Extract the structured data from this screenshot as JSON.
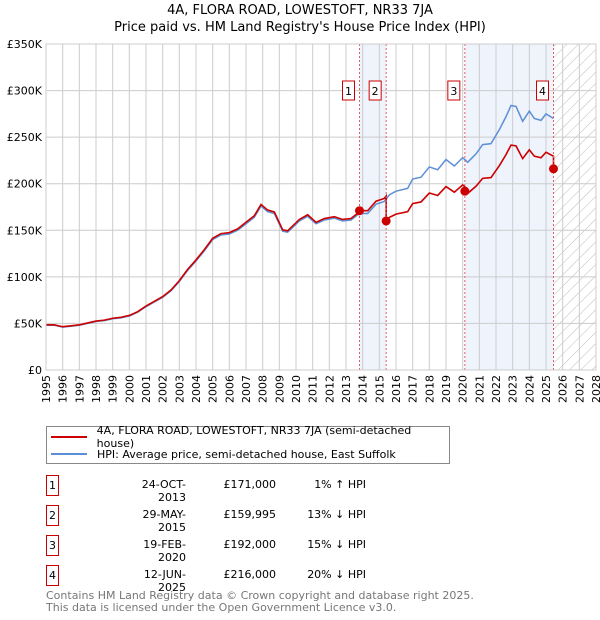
{
  "chart_data": {
    "type": "line",
    "title": "4A, FLORA ROAD, LOWESTOFT, NR33 7JA",
    "subtitle": "Price paid vs. HM Land Registry's House Price Index (HPI)",
    "xlim": [
      1995,
      2028
    ],
    "ylim": [
      0,
      350000
    ],
    "grid": true,
    "x_ticks": [
      "1995",
      "1996",
      "1997",
      "1998",
      "1999",
      "2000",
      "2001",
      "2002",
      "2003",
      "2004",
      "2005",
      "2006",
      "2007",
      "2008",
      "2009",
      "2010",
      "2011",
      "2012",
      "2013",
      "2014",
      "2015",
      "2016",
      "2017",
      "2018",
      "2019",
      "2020",
      "2021",
      "2022",
      "2023",
      "2024",
      "2025",
      "2026",
      "2027",
      "2028"
    ],
    "y_ticks": [
      {
        "v": 0,
        "label": "£0"
      },
      {
        "v": 50000,
        "label": "£50K"
      },
      {
        "v": 100000,
        "label": "£100K"
      },
      {
        "v": 150000,
        "label": "£150K"
      },
      {
        "v": 200000,
        "label": "£200K"
      },
      {
        "v": 250000,
        "label": "£250K"
      },
      {
        "v": 300000,
        "label": "£300K"
      },
      {
        "v": 350000,
        "label": "£350K"
      }
    ],
    "series": [
      {
        "name": "4A, FLORA ROAD, LOWESTOFT, NR33 7JA (semi-detached house)",
        "color": "#cc0000",
        "derived_from_hpi": true
      },
      {
        "name": "HPI: Average price, semi-detached house, East Suffolk",
        "color": "#5b8fd6",
        "x": [
          1995,
          1995.5,
          1996,
          1996.5,
          1997,
          1997.5,
          1998,
          1998.5,
          1999,
          1999.5,
          2000,
          2000.5,
          2001,
          2001.5,
          2002,
          2002.5,
          2003,
          2003.5,
          2004,
          2004.5,
          2005,
          2005.5,
          2006,
          2006.5,
          2007,
          2007.5,
          2007.9,
          2008.3,
          2008.7,
          2009.2,
          2009.5,
          2010.2,
          2010.7,
          2011.2,
          2011.7,
          2012.3,
          2012.8,
          2013.3,
          2013.8,
          2014.3,
          2014.8,
          2015.3,
          2015.6,
          2016,
          2016.7,
          2017,
          2017.5,
          2018,
          2018.5,
          2019,
          2019.5,
          2020,
          2020.3,
          2020.8,
          2021.2,
          2021.7,
          2022.2,
          2022.6,
          2022.9,
          2023.2,
          2023.6,
          2024,
          2024.3,
          2024.7,
          2025,
          2025.45
        ],
        "y": [
          48000,
          48000,
          46000,
          47000,
          48000,
          50000,
          52000,
          53000,
          55000,
          56000,
          58000,
          62000,
          68000,
          73000,
          78000,
          85000,
          95000,
          107000,
          117000,
          128000,
          140000,
          145000,
          146000,
          150000,
          157000,
          164000,
          176000,
          170000,
          168000,
          149000,
          148000,
          160000,
          165000,
          157000,
          161000,
          163000,
          160000,
          161000,
          168000,
          168000,
          178000,
          181000,
          188000,
          192000,
          195000,
          205000,
          207000,
          218000,
          215000,
          226000,
          219000,
          228000,
          223000,
          232000,
          242000,
          243000,
          258000,
          272000,
          284000,
          283000,
          267000,
          278000,
          270000,
          268000,
          275000,
          270000
        ]
      }
    ],
    "sales": [
      {
        "id": "1",
        "x": 2013.81,
        "date": "24-OCT-2013",
        "price": 171000,
        "price_label": "£171,000",
        "hpi_diff": "1% ↑ HPI"
      },
      {
        "id": "2",
        "x": 2015.41,
        "date": "29-MAY-2015",
        "price": 159995,
        "price_label": "£159,995",
        "hpi_diff": "13% ↓ HPI"
      },
      {
        "id": "3",
        "x": 2020.13,
        "date": "19-FEB-2020",
        "price": 192000,
        "price_label": "£192,000",
        "hpi_diff": "15% ↓ HPI"
      },
      {
        "id": "4",
        "x": 2025.45,
        "date": "12-JUN-2025",
        "price": 216000,
        "price_label": "£216,000",
        "hpi_diff": "20% ↓ HPI"
      }
    ],
    "shaded_ranges": [
      [
        2013.81,
        2015.41
      ],
      [
        2020.13,
        2025.45
      ]
    ],
    "hatched_from": 2025.45
  },
  "legend": {
    "property": "4A, FLORA ROAD, LOWESTOFT, NR33 7JA (semi-detached house)",
    "hpi": "HPI: Average price, semi-detached house, East Suffolk"
  },
  "footer": {
    "line1": "Contains HM Land Registry data © Crown copyright and database right 2025.",
    "line2": "This data is licensed under the Open Government Licence v3.0."
  }
}
